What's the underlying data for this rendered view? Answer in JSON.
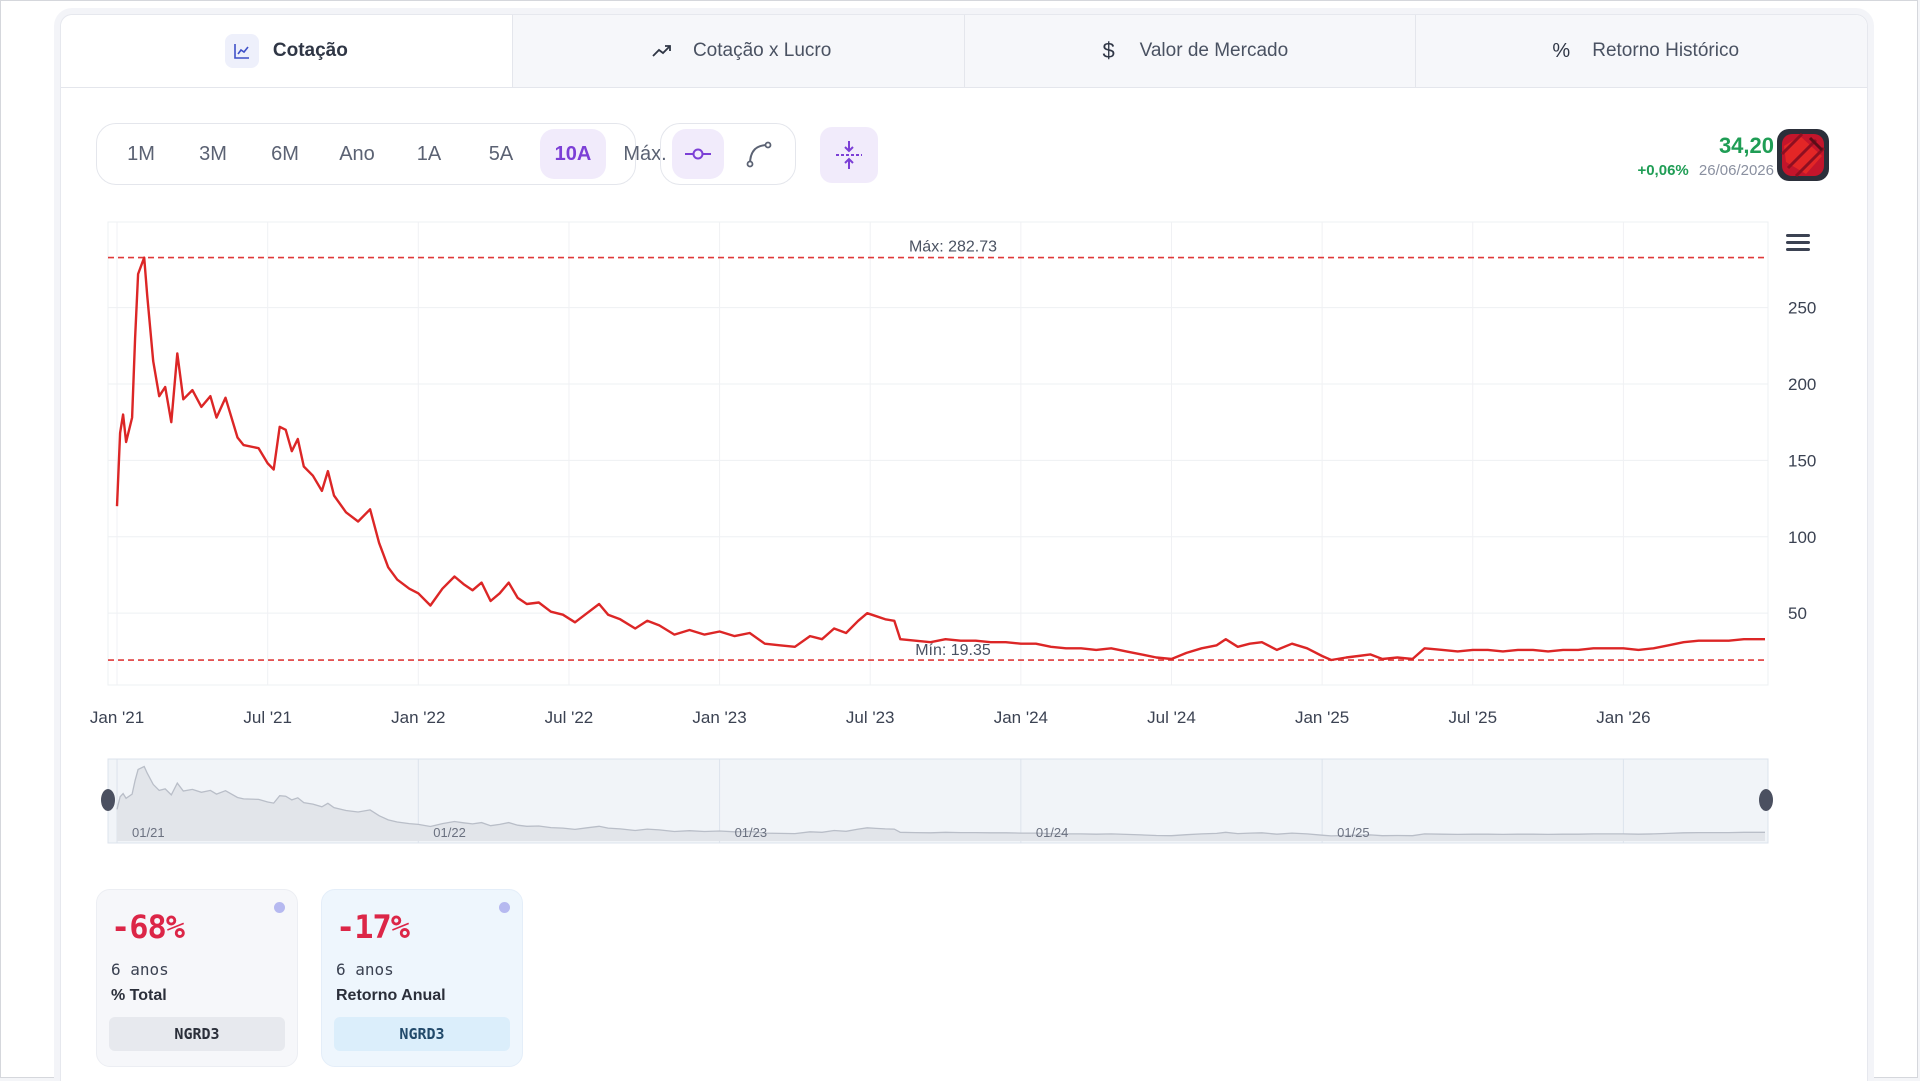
{
  "tabs": [
    {
      "label": "Cotação",
      "icon": "line-chart-icon",
      "active": true
    },
    {
      "label": "Cotação x Lucro",
      "icon": "trend-up-icon",
      "active": false
    },
    {
      "label": "Valor de Mercado",
      "icon": "dollar-icon",
      "active": false
    },
    {
      "label": "Retorno Histórico",
      "icon": "percent-icon",
      "active": false
    }
  ],
  "periods": [
    "1M",
    "3M",
    "6M",
    "Ano",
    "1A",
    "5A",
    "10A",
    "Máx."
  ],
  "active_period": "10A",
  "chart_style_buttons": [
    {
      "icon": "line-node-icon",
      "active": true
    },
    {
      "icon": "curve-icon",
      "active": false
    }
  ],
  "compress_button": {
    "icon": "compress-vertical-icon"
  },
  "quote": {
    "price": "34,20",
    "change": "+0,06%",
    "date": "26/06/2026"
  },
  "logo": {
    "icon": "company-logo-icon"
  },
  "chart_menu": {
    "icon": "hamburger-menu-icon"
  },
  "colors": {
    "line": "#dc2626",
    "accent": "#7c3fd6",
    "positive": "#1f9d55",
    "negative": "#dc2647",
    "navigator_line": "#b9bec8"
  },
  "chart_data": {
    "type": "line",
    "x_ticks": [
      "Jan '21",
      "Jul '21",
      "Jan '22",
      "Jul '22",
      "Jan '23",
      "Jul '23",
      "Jan '24",
      "Jul '24",
      "Jan '25",
      "Jul '25",
      "Jan '26"
    ],
    "y_ticks": [
      50,
      100,
      150,
      200,
      250
    ],
    "ylim": [
      3,
      306
    ],
    "xlim": [
      2020.97,
      2026.48
    ],
    "grid": true,
    "max_label": "Máx: 282.73",
    "max_value": 282.73,
    "min_label": "Mín: 19.35",
    "min_value": 19.35,
    "series": [
      {
        "points": [
          [
            2021.0,
            120
          ],
          [
            2021.01,
            168
          ],
          [
            2021.02,
            180
          ],
          [
            2021.03,
            162
          ],
          [
            2021.05,
            178
          ],
          [
            2021.06,
            230
          ],
          [
            2021.07,
            272
          ],
          [
            2021.09,
            282.73
          ],
          [
            2021.1,
            258
          ],
          [
            2021.12,
            215
          ],
          [
            2021.14,
            192
          ],
          [
            2021.16,
            198
          ],
          [
            2021.18,
            175
          ],
          [
            2021.2,
            220
          ],
          [
            2021.22,
            190
          ],
          [
            2021.25,
            196
          ],
          [
            2021.28,
            185
          ],
          [
            2021.31,
            192
          ],
          [
            2021.33,
            178
          ],
          [
            2021.36,
            191
          ],
          [
            2021.4,
            165
          ],
          [
            2021.42,
            160
          ],
          [
            2021.47,
            158
          ],
          [
            2021.5,
            148
          ],
          [
            2021.52,
            144
          ],
          [
            2021.54,
            172
          ],
          [
            2021.56,
            170
          ],
          [
            2021.58,
            156
          ],
          [
            2021.6,
            164
          ],
          [
            2021.62,
            146
          ],
          [
            2021.65,
            140
          ],
          [
            2021.68,
            130
          ],
          [
            2021.7,
            143
          ],
          [
            2021.72,
            127
          ],
          [
            2021.76,
            116
          ],
          [
            2021.8,
            110
          ],
          [
            2021.84,
            118
          ],
          [
            2021.87,
            96
          ],
          [
            2021.9,
            80
          ],
          [
            2021.93,
            72
          ],
          [
            2021.97,
            66
          ],
          [
            2022.0,
            63
          ],
          [
            2022.04,
            55
          ],
          [
            2022.08,
            66
          ],
          [
            2022.12,
            74
          ],
          [
            2022.15,
            69
          ],
          [
            2022.18,
            65
          ],
          [
            2022.21,
            70
          ],
          [
            2022.24,
            58
          ],
          [
            2022.27,
            63
          ],
          [
            2022.3,
            70
          ],
          [
            2022.33,
            60
          ],
          [
            2022.36,
            56
          ],
          [
            2022.4,
            57
          ],
          [
            2022.44,
            51
          ],
          [
            2022.48,
            49
          ],
          [
            2022.52,
            44
          ],
          [
            2022.56,
            50
          ],
          [
            2022.6,
            56
          ],
          [
            2022.63,
            49
          ],
          [
            2022.67,
            46
          ],
          [
            2022.72,
            40
          ],
          [
            2022.76,
            45
          ],
          [
            2022.8,
            42
          ],
          [
            2022.85,
            36
          ],
          [
            2022.9,
            39
          ],
          [
            2022.95,
            36
          ],
          [
            2023.0,
            38
          ],
          [
            2023.05,
            35
          ],
          [
            2023.1,
            37
          ],
          [
            2023.15,
            30
          ],
          [
            2023.2,
            29
          ],
          [
            2023.25,
            28
          ],
          [
            2023.3,
            35
          ],
          [
            2023.34,
            33
          ],
          [
            2023.38,
            40
          ],
          [
            2023.42,
            37
          ],
          [
            2023.46,
            45
          ],
          [
            2023.49,
            50
          ],
          [
            2023.52,
            48
          ],
          [
            2023.55,
            46
          ],
          [
            2023.58,
            45
          ],
          [
            2023.6,
            33
          ],
          [
            2023.65,
            32
          ],
          [
            2023.7,
            31
          ],
          [
            2023.75,
            33
          ],
          [
            2023.8,
            32
          ],
          [
            2023.85,
            32
          ],
          [
            2023.9,
            31
          ],
          [
            2023.95,
            31
          ],
          [
            2024.0,
            30
          ],
          [
            2024.05,
            30
          ],
          [
            2024.1,
            28
          ],
          [
            2024.15,
            27
          ],
          [
            2024.2,
            27
          ],
          [
            2024.25,
            26
          ],
          [
            2024.3,
            27
          ],
          [
            2024.35,
            25
          ],
          [
            2024.4,
            23
          ],
          [
            2024.45,
            21
          ],
          [
            2024.5,
            20
          ],
          [
            2024.55,
            24
          ],
          [
            2024.6,
            27
          ],
          [
            2024.65,
            29
          ],
          [
            2024.68,
            33
          ],
          [
            2024.72,
            28
          ],
          [
            2024.76,
            30
          ],
          [
            2024.8,
            31
          ],
          [
            2024.85,
            26
          ],
          [
            2024.9,
            30
          ],
          [
            2024.95,
            27
          ],
          [
            2025.0,
            22
          ],
          [
            2025.03,
            19.35
          ],
          [
            2025.08,
            21
          ],
          [
            2025.12,
            22
          ],
          [
            2025.16,
            23
          ],
          [
            2025.2,
            20
          ],
          [
            2025.25,
            21
          ],
          [
            2025.3,
            20
          ],
          [
            2025.34,
            27
          ],
          [
            2025.4,
            26
          ],
          [
            2025.45,
            25
          ],
          [
            2025.5,
            26
          ],
          [
            2025.55,
            26
          ],
          [
            2025.6,
            25
          ],
          [
            2025.65,
            26
          ],
          [
            2025.7,
            26
          ],
          [
            2025.75,
            25
          ],
          [
            2025.8,
            26
          ],
          [
            2025.85,
            26
          ],
          [
            2025.9,
            27
          ],
          [
            2025.95,
            27
          ],
          [
            2026.0,
            27
          ],
          [
            2026.05,
            26
          ],
          [
            2026.1,
            27
          ],
          [
            2026.15,
            29
          ],
          [
            2026.2,
            31
          ],
          [
            2026.25,
            32
          ],
          [
            2026.3,
            32
          ],
          [
            2026.35,
            32
          ],
          [
            2026.4,
            33
          ],
          [
            2026.47,
            33
          ]
        ]
      }
    ],
    "navigator_ticks": [
      "01/21",
      "01/22",
      "01/23",
      "01/24",
      "01/25"
    ]
  },
  "stats": [
    {
      "value": "-68%",
      "period": "6 anos",
      "label": "% Total",
      "ticker": "NGRD3"
    },
    {
      "value": "-17%",
      "period": "6 anos",
      "label": "Retorno Anual",
      "ticker": "NGRD3"
    }
  ]
}
